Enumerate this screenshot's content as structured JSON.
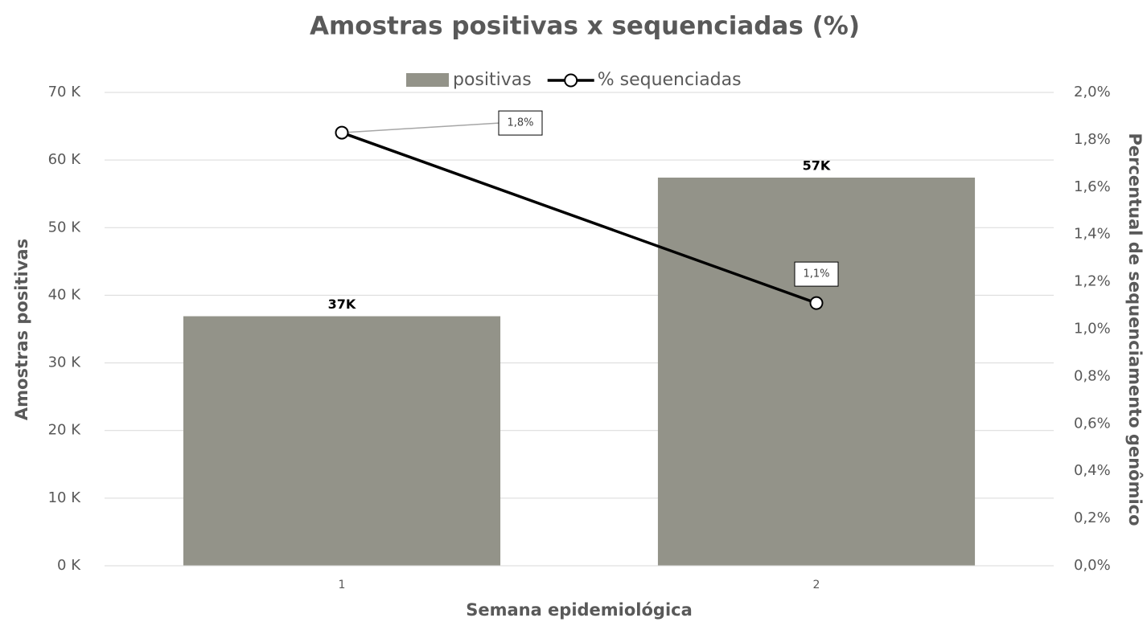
{
  "chart_data": {
    "type": "bar",
    "title": "Amostras positivas x sequenciadas (%)",
    "x_label": "Semana epidemiológica",
    "y_label": "Amostras positivas",
    "y2_label": "Percentual de sequenciamento genômico",
    "categories": [
      "1",
      "2"
    ],
    "series": [
      {
        "name": "positivas",
        "type": "bar",
        "color": "#939389",
        "values": [
          36900,
          57400
        ],
        "value_labels": [
          "37K",
          "57K"
        ]
      },
      {
        "name": "% sequenciadas",
        "type": "line",
        "axis": "y2",
        "color": "#000000",
        "values": [
          1.83,
          1.11
        ],
        "value_labels": [
          "1,8%",
          "1,1%"
        ]
      }
    ],
    "ylim": [
      0,
      70000
    ],
    "yticks": [
      {
        "value": 0,
        "label": "0 K"
      },
      {
        "value": 10000,
        "label": "10 K"
      },
      {
        "value": 20000,
        "label": "20 K"
      },
      {
        "value": 30000,
        "label": "30 K"
      },
      {
        "value": 40000,
        "label": "40 K"
      },
      {
        "value": 50000,
        "label": "50 K"
      },
      {
        "value": 60000,
        "label": "60 K"
      },
      {
        "value": 70000,
        "label": "70 K"
      }
    ],
    "y2lim": [
      0,
      2.0
    ],
    "y2ticks": [
      {
        "value": 0,
        "label": "0,0%"
      },
      {
        "value": 0.2,
        "label": "0,2%"
      },
      {
        "value": 0.4,
        "label": "0,4%"
      },
      {
        "value": 0.6,
        "label": "0,6%"
      },
      {
        "value": 0.8,
        "label": "0,8%"
      },
      {
        "value": 1.0,
        "label": "1,0%"
      },
      {
        "value": 1.2,
        "label": "1,2%"
      },
      {
        "value": 1.4,
        "label": "1,4%"
      },
      {
        "value": 1.6,
        "label": "1,6%"
      },
      {
        "value": 1.8,
        "label": "1,8%"
      },
      {
        "value": 2.0,
        "label": "2,0%"
      }
    ],
    "grid": true,
    "legend": "top"
  }
}
